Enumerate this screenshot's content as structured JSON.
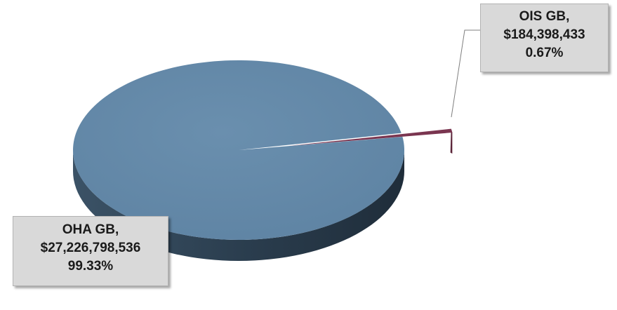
{
  "chart_data": {
    "type": "pie",
    "title": "",
    "slices": [
      {
        "name": "OHA GB",
        "value": 27226798536,
        "percent": 99.33,
        "color": "#6589a8",
        "label": {
          "line1": "OHA GB,",
          "line2": "$27,226,798,536",
          "line3": "99.33%"
        }
      },
      {
        "name": "OIS GB",
        "value": 184398433,
        "percent": 0.67,
        "color": "#7a3550",
        "label": {
          "line1": "OIS GB,",
          "line2": "$184,398,433",
          "line3": "0.67%"
        }
      }
    ],
    "legend": false,
    "style": "3d-exploded"
  }
}
